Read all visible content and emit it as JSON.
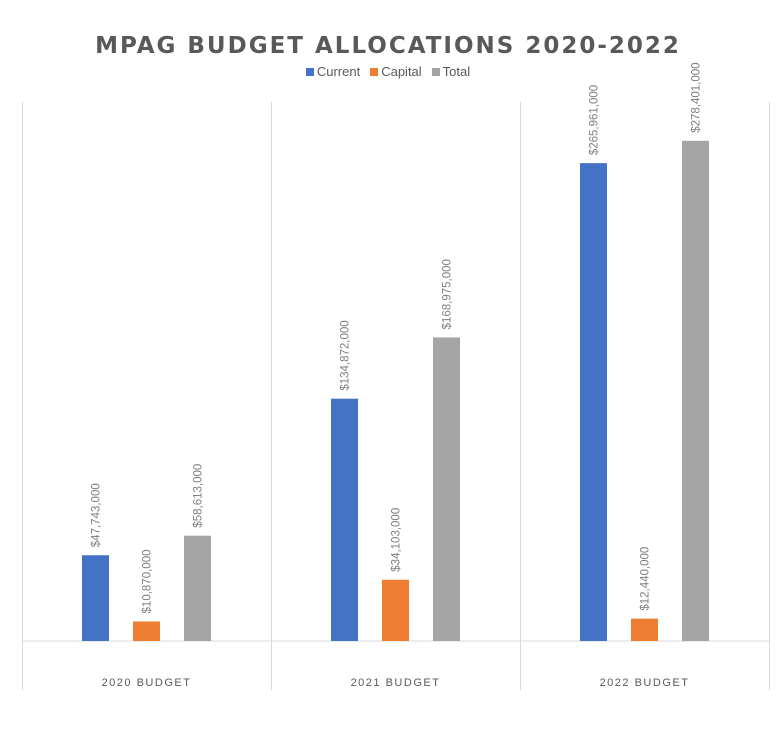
{
  "chart_data": {
    "type": "bar",
    "title": "MPAG BUDGET ALLOCATIONS 2020-2022",
    "categories": [
      "2020 BUDGET",
      "2021 BUDGET",
      "2022 BUDGET"
    ],
    "series": [
      {
        "name": "Current",
        "color": "#4472C4",
        "values": [
          47743000,
          134872000,
          265961000
        ]
      },
      {
        "name": "Capital",
        "color": "#ED7D31",
        "values": [
          10870000,
          34103000,
          12440000
        ]
      },
      {
        "name": "Total",
        "color": "#A5A5A5",
        "values": [
          58613000,
          168975000,
          278401000
        ]
      }
    ],
    "ylim": [
      0,
      300000000
    ],
    "data_label_format": "currency",
    "legend_position": "top",
    "grid": false,
    "xlabel": "",
    "ylabel": ""
  }
}
